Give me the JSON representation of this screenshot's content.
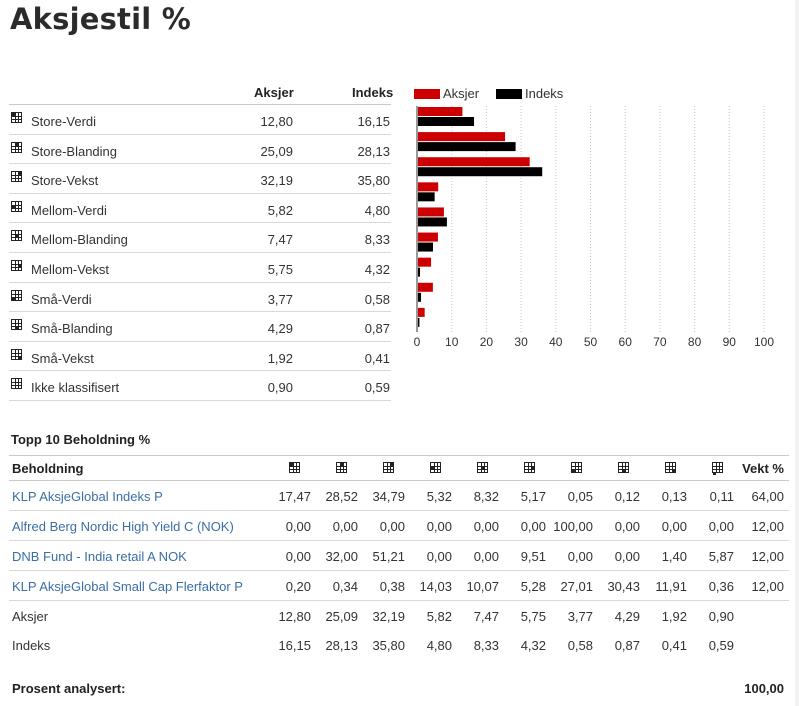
{
  "title": "Aksjestil %",
  "style_table": {
    "headers": {
      "aksjer": "Aksjer",
      "indeks": "Indeks"
    },
    "rows": [
      {
        "label": "Store-Verdi",
        "aksjer": "12,80",
        "indeks": "16,15",
        "cell": 0
      },
      {
        "label": "Store-Blanding",
        "aksjer": "25,09",
        "indeks": "28,13",
        "cell": 1
      },
      {
        "label": "Store-Vekst",
        "aksjer": "32,19",
        "indeks": "35,80",
        "cell": 2
      },
      {
        "label": "Mellom-Verdi",
        "aksjer": "5,82",
        "indeks": "4,80",
        "cell": 3
      },
      {
        "label": "Mellom-Blanding",
        "aksjer": "7,47",
        "indeks": "8,33",
        "cell": 4
      },
      {
        "label": "Mellom-Vekst",
        "aksjer": "5,75",
        "indeks": "4,32",
        "cell": 5
      },
      {
        "label": "Små-Verdi",
        "aksjer": "3,77",
        "indeks": "0,58",
        "cell": 6
      },
      {
        "label": "Små-Blanding",
        "aksjer": "4,29",
        "indeks": "0,87",
        "cell": 7
      },
      {
        "label": "Små-Vekst",
        "aksjer": "1,92",
        "indeks": "0,41",
        "cell": 8
      },
      {
        "label": "Ikke klassifisert",
        "aksjer": "0,90",
        "indeks": "0,59",
        "cell": -1
      }
    ]
  },
  "chart_data": {
    "type": "bar",
    "orientation": "horizontal",
    "categories": [
      "Store-Verdi",
      "Store-Blanding",
      "Store-Vekst",
      "Mellom-Verdi",
      "Mellom-Blanding",
      "Mellom-Vekst",
      "Små-Verdi",
      "Små-Blanding",
      "Små-Vekst"
    ],
    "series": [
      {
        "name": "Aksjer",
        "color": "#cc0000",
        "values": [
          12.8,
          25.09,
          32.19,
          5.82,
          7.47,
          5.75,
          3.77,
          4.29,
          1.92
        ]
      },
      {
        "name": "Indeks",
        "color": "#000000",
        "values": [
          16.15,
          28.13,
          35.8,
          4.8,
          8.33,
          4.32,
          0.58,
          0.87,
          0.41
        ]
      }
    ],
    "xlim": [
      0,
      100
    ],
    "xticks": [
      "0",
      "10",
      "20",
      "30",
      "40",
      "50",
      "60",
      "70",
      "80",
      "90",
      "100"
    ],
    "grid": true,
    "legend": "top-left"
  },
  "top10": {
    "title": "Topp 10 Beholdning %",
    "header_name": "Beholdning",
    "header_vekt": "Vekt %",
    "holdings": [
      {
        "name": "KLP AksjeGlobal Indeks P",
        "values": [
          "17,47",
          "28,52",
          "34,79",
          "5,32",
          "8,32",
          "5,17",
          "0,05",
          "0,12",
          "0,13",
          "0,11"
        ],
        "vekt": "64,00"
      },
      {
        "name": "Alfred Berg Nordic High Yield C (NOK)",
        "values": [
          "0,00",
          "0,00",
          "0,00",
          "0,00",
          "0,00",
          "0,00",
          "100,00",
          "0,00",
          "0,00",
          "0,00"
        ],
        "vekt": "12,00"
      },
      {
        "name": "DNB Fund - India retail A NOK",
        "values": [
          "0,00",
          "32,00",
          "51,21",
          "0,00",
          "0,00",
          "9,51",
          "0,00",
          "0,00",
          "1,40",
          "5,87"
        ],
        "vekt": "12,00"
      },
      {
        "name": "KLP AksjeGlobal Small Cap Flerfaktor P",
        "values": [
          "0,20",
          "0,34",
          "0,38",
          "14,03",
          "10,07",
          "5,28",
          "27,01",
          "30,43",
          "11,91",
          "0,36"
        ],
        "vekt": "12,00"
      }
    ],
    "summary_rows": [
      {
        "name": "Aksjer",
        "values": [
          "12,80",
          "25,09",
          "32,19",
          "5,82",
          "7,47",
          "5,75",
          "3,77",
          "4,29",
          "1,92",
          "0,90"
        ]
      },
      {
        "name": "Indeks",
        "values": [
          "16,15",
          "28,13",
          "35,80",
          "4,80",
          "8,33",
          "4,32",
          "0,58",
          "0,87",
          "0,41",
          "0,59"
        ]
      }
    ],
    "footer_label": "Prosent analysert:",
    "footer_value": "100,00"
  },
  "icons": {
    "style_box": "style-box-grid-icon"
  }
}
